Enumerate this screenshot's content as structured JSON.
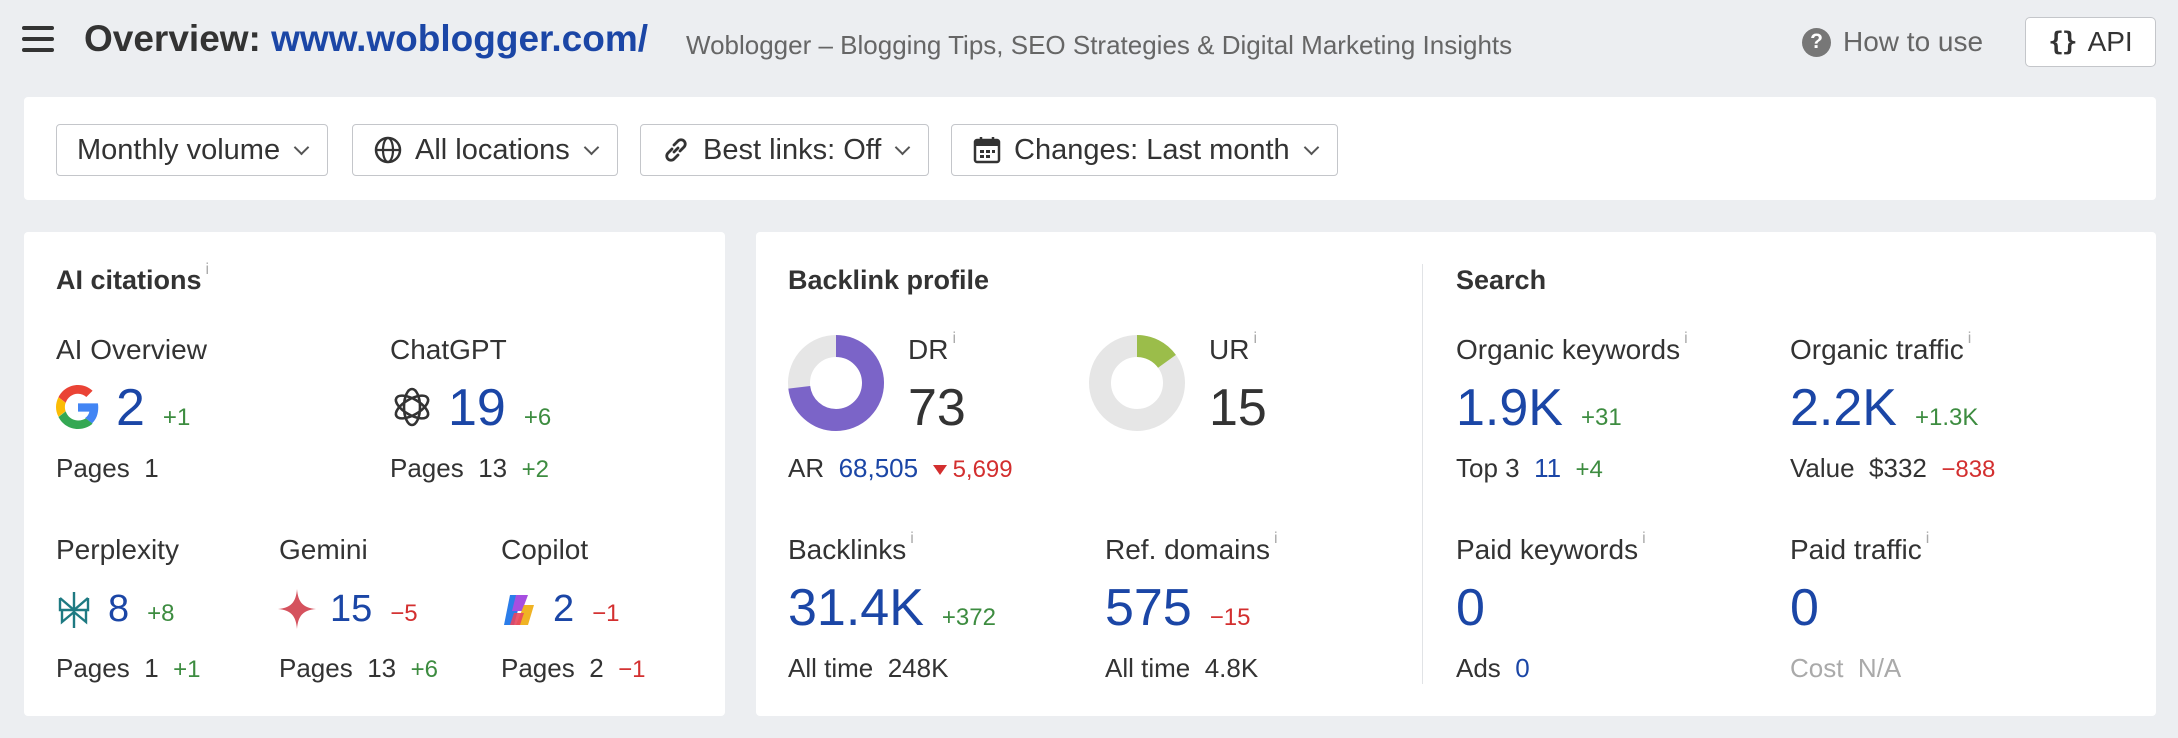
{
  "header": {
    "title_prefix": "Overview:",
    "title_url": "www.woblogger.com/",
    "subtitle": "Woblogger – Blogging Tips, SEO Strategies & Digital Marketing Insights",
    "how_to_use": "How to use",
    "api": "API",
    "api_icon": "{}"
  },
  "filters": {
    "volume": "Monthly volume",
    "locations": "All locations",
    "best_links": "Best links: Off",
    "changes": "Changes: Last month"
  },
  "ai_citations": {
    "title": "AI citations",
    "info": "i",
    "ai_overview": {
      "label": "AI Overview",
      "value": "2",
      "delta": "+1",
      "pages_label": "Pages",
      "pages": "1"
    },
    "chatgpt": {
      "label": "ChatGPT",
      "value": "19",
      "delta": "+6",
      "pages_label": "Pages",
      "pages": "13",
      "pages_delta": "+2"
    },
    "perplexity": {
      "label": "Perplexity",
      "value": "8",
      "delta": "+8",
      "pages_label": "Pages",
      "pages": "1",
      "pages_delta": "+1"
    },
    "gemini": {
      "label": "Gemini",
      "value": "15",
      "delta": "−5",
      "pages_label": "Pages",
      "pages": "13",
      "pages_delta": "+6"
    },
    "copilot": {
      "label": "Copilot",
      "value": "2",
      "delta": "−1",
      "pages_label": "Pages",
      "pages": "2",
      "pages_delta": "−1"
    }
  },
  "backlink_profile": {
    "title": "Backlink profile",
    "dr": {
      "label": "DR",
      "info": "i",
      "value": "73",
      "fill_percent": 73
    },
    "ur": {
      "label": "UR",
      "info": "i",
      "value": "15",
      "fill_percent": 15
    },
    "ar": {
      "label": "AR",
      "value": "68,505",
      "delta": "5,699"
    },
    "backlinks": {
      "label": "Backlinks",
      "info": "i",
      "value": "31.4K",
      "delta": "+372",
      "all_time_label": "All time",
      "all_time": "248K"
    },
    "ref_domains": {
      "label": "Ref. domains",
      "info": "i",
      "value": "575",
      "delta": "−15",
      "all_time_label": "All time",
      "all_time": "4.8K"
    }
  },
  "search": {
    "title": "Search",
    "organic_keywords": {
      "label": "Organic keywords",
      "info": "i",
      "value": "1.9K",
      "delta": "+31",
      "top3_label": "Top 3",
      "top3": "11",
      "top3_delta": "+4"
    },
    "organic_traffic": {
      "label": "Organic traffic",
      "info": "i",
      "value": "2.2K",
      "delta": "+1.3K",
      "value_label": "Value",
      "value_amount": "$332",
      "value_delta": "−838"
    },
    "paid_keywords": {
      "label": "Paid keywords",
      "info": "i",
      "value": "0",
      "ads_label": "Ads",
      "ads": "0"
    },
    "paid_traffic": {
      "label": "Paid traffic",
      "info": "i",
      "value": "0",
      "cost_label": "Cost",
      "cost": "N/A"
    }
  },
  "colors": {
    "link_blue": "#1b46a6",
    "positive": "#3d8c40",
    "negative": "#d32f2f",
    "dr_fill": "#7b64c8",
    "ur_fill": "#9bbd4a",
    "donut_track": "#e6e6e6"
  }
}
